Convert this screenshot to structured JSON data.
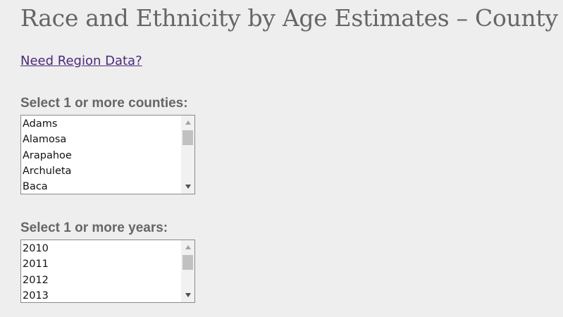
{
  "page": {
    "title": "Race and Ethnicity by Age Estimates – County",
    "region_link": "Need Region Data?"
  },
  "counties": {
    "label": "Select 1 or more counties:",
    "options": [
      "Adams",
      "Alamosa",
      "Arapahoe",
      "Archuleta",
      "Baca"
    ]
  },
  "years": {
    "label": "Select 1 or more years:",
    "options": [
      "2010",
      "2011",
      "2012",
      "2013"
    ]
  },
  "colors": {
    "background": "#eeeeee",
    "text": "#666666",
    "link": "#4b2a7b"
  },
  "icons": [
    "scroll-up-arrow-icon",
    "scroll-down-arrow-icon"
  ]
}
